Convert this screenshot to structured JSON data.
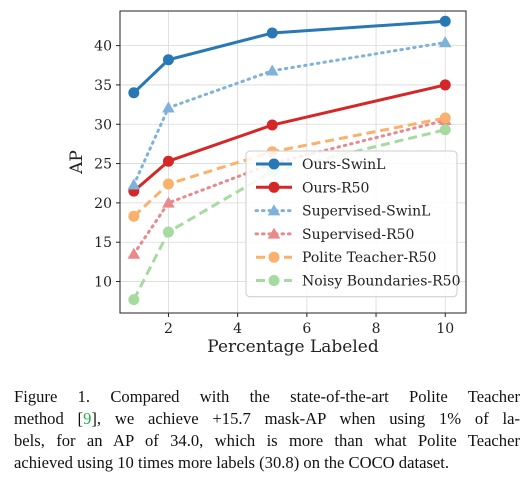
{
  "chart_data": {
    "type": "line",
    "xlabel": "Percentage Labeled",
    "ylabel": "AP",
    "xlim": [
      0.6,
      10.6
    ],
    "ylim": [
      6,
      44.4
    ],
    "xticks": [
      2,
      4,
      6,
      8,
      10
    ],
    "yticks": [
      10,
      15,
      20,
      25,
      30,
      35,
      40
    ],
    "grid": true,
    "legend_position": "lower-right",
    "series": [
      {
        "name": "Ours-SwinL",
        "x": [
          1,
          2,
          5,
          10
        ],
        "y": [
          34.0,
          38.2,
          41.6,
          43.1
        ],
        "color": "#2878b5",
        "style": "solid",
        "marker": "circle"
      },
      {
        "name": "Ours-R50",
        "x": [
          1,
          2,
          5,
          10
        ],
        "y": [
          21.5,
          25.3,
          29.9,
          35.0
        ],
        "color": "#d62728",
        "style": "solid",
        "marker": "circle"
      },
      {
        "name": "Supervised-SwinL",
        "x": [
          1,
          2,
          5,
          10
        ],
        "y": [
          22.3,
          32.1,
          36.8,
          40.4
        ],
        "color": "#7fb2d8",
        "style": "dotted",
        "marker": "triangle"
      },
      {
        "name": "Supervised-R50",
        "x": [
          1,
          2,
          5,
          10
        ],
        "y": [
          13.5,
          20.0,
          25.0,
          30.5
        ],
        "color": "#e8898b",
        "style": "dotted",
        "marker": "triangle"
      },
      {
        "name": "Polite Teacher-R50",
        "x": [
          1,
          2,
          5,
          10
        ],
        "y": [
          18.3,
          22.4,
          26.5,
          30.8
        ],
        "color": "#fbb06b",
        "style": "dashed",
        "marker": "circle"
      },
      {
        "name": "Noisy Boundaries-R50",
        "x": [
          1,
          2,
          5,
          10
        ],
        "y": [
          7.7,
          16.3,
          24.0,
          29.3
        ],
        "color": "#a6dba0",
        "style": "dashed",
        "marker": "circle"
      }
    ]
  },
  "caption": {
    "line1": "Figure 1.   Compared with the state-of-the-art Polite Teacher",
    "line2_pre": "method [",
    "line2_ref": "9",
    "line2_post": "], we achieve +15.7 mask-AP when using 1% of la-",
    "line3": "bels, for an AP of 34.0, which is more than what Polite Teacher",
    "line4": "achieved using 10 times more labels (30.8) on the COCO dataset."
  }
}
